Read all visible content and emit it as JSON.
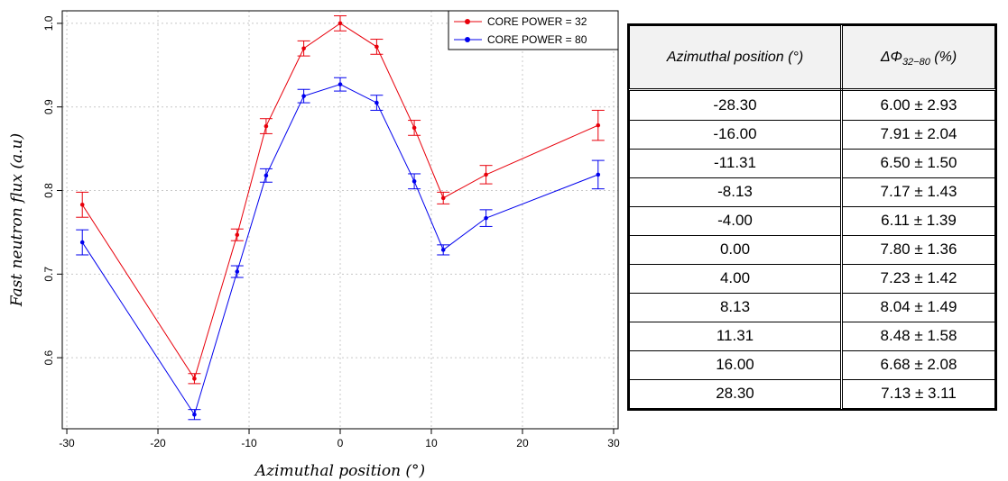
{
  "chart_data": [
    {
      "type": "line",
      "xlabel": "Azimuthal position (°)",
      "ylabel": "Fast neutron flux (a.u)",
      "xlim": [
        -30.5,
        30.5
      ],
      "ylim": [
        0.515,
        1.015
      ],
      "xticks": [
        -30,
        -20,
        -10,
        0,
        10,
        20,
        30
      ],
      "yticks": [
        0.6,
        0.7,
        0.8,
        0.9,
        1.0
      ],
      "ytick_labels": [
        "0.6",
        "0.7",
        "0.8",
        "0.9",
        "1.0"
      ],
      "grid": true,
      "legend_position": "top-right",
      "x": [
        -28.3,
        -16.0,
        -11.31,
        -8.13,
        -4.0,
        0.0,
        4.0,
        8.13,
        11.31,
        16.0,
        28.3
      ],
      "series": [
        {
          "name": "CORE POWER = 32",
          "color": "#e8000b",
          "values": [
            0.783,
            0.575,
            0.747,
            0.877,
            0.97,
            1.0,
            0.972,
            0.875,
            0.791,
            0.819,
            0.878
          ],
          "errors": [
            0.015,
            0.006,
            0.007,
            0.009,
            0.009,
            0.009,
            0.009,
            0.009,
            0.007,
            0.011,
            0.018
          ]
        },
        {
          "name": "CORE POWER = 80",
          "color": "#0000ee",
          "values": [
            0.738,
            0.532,
            0.703,
            0.818,
            0.913,
            0.927,
            0.905,
            0.811,
            0.729,
            0.767,
            0.819
          ],
          "errors": [
            0.015,
            0.006,
            0.007,
            0.008,
            0.008,
            0.008,
            0.009,
            0.009,
            0.006,
            0.01,
            0.017
          ]
        }
      ]
    },
    {
      "type": "table",
      "columns": [
        "Azimuthal position (°)",
        "ΔΦ32−80 (%)"
      ],
      "header_symbol": "ΔΦ",
      "header_subscript": "32−80",
      "header_unit": "(%)",
      "rows": [
        [
          "-28.30",
          "6.00 ± 2.93"
        ],
        [
          "-16.00",
          "7.91 ± 2.04"
        ],
        [
          "-11.31",
          "6.50 ± 1.50"
        ],
        [
          "-8.13",
          "7.17 ± 1.43"
        ],
        [
          "-4.00",
          "6.11 ± 1.39"
        ],
        [
          "0.00",
          "7.80 ± 1.36"
        ],
        [
          "4.00",
          "7.23 ± 1.42"
        ],
        [
          "8.13",
          "8.04 ± 1.49"
        ],
        [
          "11.31",
          "8.48 ± 1.58"
        ],
        [
          "16.00",
          "6.68 ± 2.08"
        ],
        [
          "28.30",
          "7.13 ± 3.11"
        ]
      ]
    }
  ]
}
